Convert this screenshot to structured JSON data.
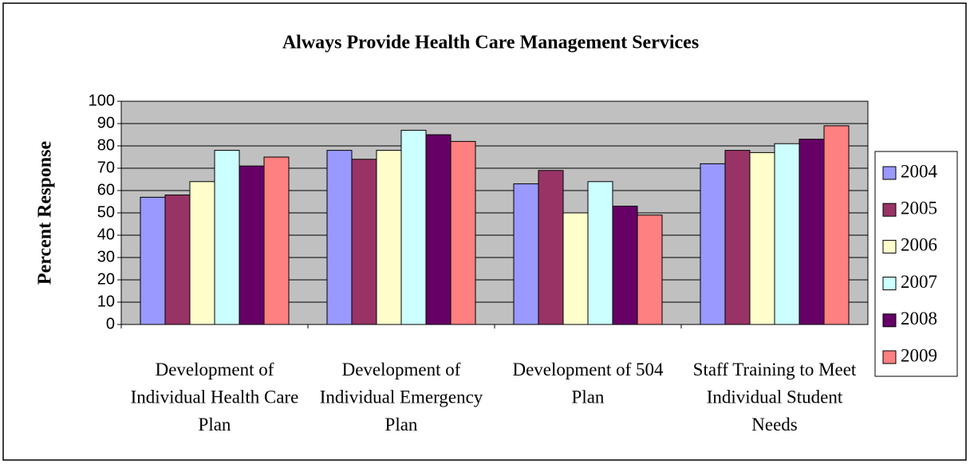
{
  "chart_data": {
    "type": "bar",
    "title": "Always Provide Health Care Management Services",
    "y_label": "Percent Response",
    "categories": [
      "Development of Individual Health Care Plan",
      "Development of Individual Emergency Plan",
      "Development of 504 Plan",
      "Staff Training to Meet Individual Student Needs"
    ],
    "series": [
      {
        "name": "2004",
        "color": "#9999ff",
        "values": [
          57,
          78,
          63,
          72
        ]
      },
      {
        "name": "2005",
        "color": "#993366",
        "values": [
          58,
          74,
          69,
          78
        ]
      },
      {
        "name": "2006",
        "color": "#ffffcc",
        "values": [
          64,
          78,
          50,
          77
        ]
      },
      {
        "name": "2007",
        "color": "#ccffff",
        "values": [
          78,
          87,
          64,
          81
        ]
      },
      {
        "name": "2008",
        "color": "#660066",
        "values": [
          71,
          85,
          53,
          83
        ]
      },
      {
        "name": "2009",
        "color": "#ff8080",
        "values": [
          75,
          82,
          49,
          89
        ]
      }
    ],
    "ylim": [
      0,
      100
    ],
    "yticks": [
      0,
      10,
      20,
      30,
      40,
      50,
      60,
      70,
      80,
      90,
      100
    ],
    "grid": true,
    "legend": "right"
  }
}
